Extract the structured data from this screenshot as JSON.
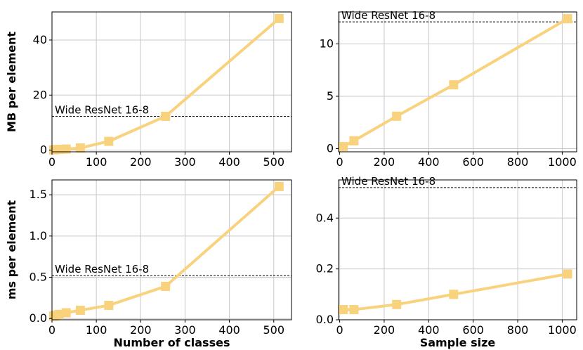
{
  "colors": {
    "series": "#f9d27d",
    "reference": "#000000",
    "grid": "#c8c8c8"
  },
  "chart_data": [
    {
      "type": "line",
      "panel": "top-left",
      "x": [
        4,
        8,
        16,
        32,
        64,
        128,
        256,
        512
      ],
      "series": [
        {
          "values": [
            0.1,
            0.2,
            0.3,
            0.4,
            0.8,
            3.2,
            12.3,
            47.8
          ]
        }
      ],
      "reference": {
        "label": "Wide ResNet 16-8",
        "value": 12.3
      },
      "xlabel": "",
      "ylabel": "MB per element",
      "xlim": [
        0,
        540
      ],
      "ylim": [
        -0.6,
        50.2
      ],
      "xticks": [
        0,
        100,
        200,
        300,
        400,
        500
      ],
      "yticks": [
        0,
        20,
        40
      ],
      "grid": true,
      "marker": "square"
    },
    {
      "type": "line",
      "panel": "top-right",
      "x": [
        16,
        64,
        256,
        512,
        1024
      ],
      "series": [
        {
          "values": [
            0.2,
            0.75,
            3.1,
            6.1,
            12.4
          ]
        }
      ],
      "reference": {
        "label": "Wide ResNet 16-8",
        "value": 12.1
      },
      "xlabel": "",
      "ylabel": "",
      "xlim": [
        -5,
        1065
      ],
      "ylim": [
        -0.3,
        13.05
      ],
      "xticks": [
        0,
        200,
        400,
        600,
        800,
        1000
      ],
      "yticks": [
        0,
        5,
        10
      ],
      "grid": true,
      "marker": "square"
    },
    {
      "type": "line",
      "panel": "bottom-left",
      "x": [
        4,
        8,
        16,
        32,
        64,
        128,
        256,
        512
      ],
      "series": [
        {
          "values": [
            0.03,
            0.04,
            0.05,
            0.07,
            0.1,
            0.16,
            0.39,
            1.6
          ]
        }
      ],
      "reference": {
        "label": "Wide ResNet 16-8",
        "value": 0.52
      },
      "xlabel": "Number of classes",
      "ylabel": "ms per element",
      "xlim": [
        0,
        540
      ],
      "ylim": [
        -0.015,
        1.68
      ],
      "xticks": [
        0,
        100,
        200,
        300,
        400,
        500
      ],
      "yticks": [
        0.0,
        0.5,
        1.0,
        1.5
      ],
      "grid": true,
      "marker": "square"
    },
    {
      "type": "line",
      "panel": "bottom-right",
      "x": [
        16,
        64,
        256,
        512,
        1024
      ],
      "series": [
        {
          "values": [
            0.04,
            0.04,
            0.06,
            0.1,
            0.18
          ]
        }
      ],
      "reference": {
        "label": "Wide ResNet 16-8",
        "value": 0.52
      },
      "xlabel": "Sample size",
      "ylabel": "",
      "xlim": [
        -5,
        1065
      ],
      "ylim": [
        0,
        0.55
      ],
      "xticks": [
        0,
        200,
        400,
        600,
        800,
        1000
      ],
      "yticks": [
        0.0,
        0.2,
        0.4
      ],
      "grid": true,
      "marker": "square"
    }
  ]
}
